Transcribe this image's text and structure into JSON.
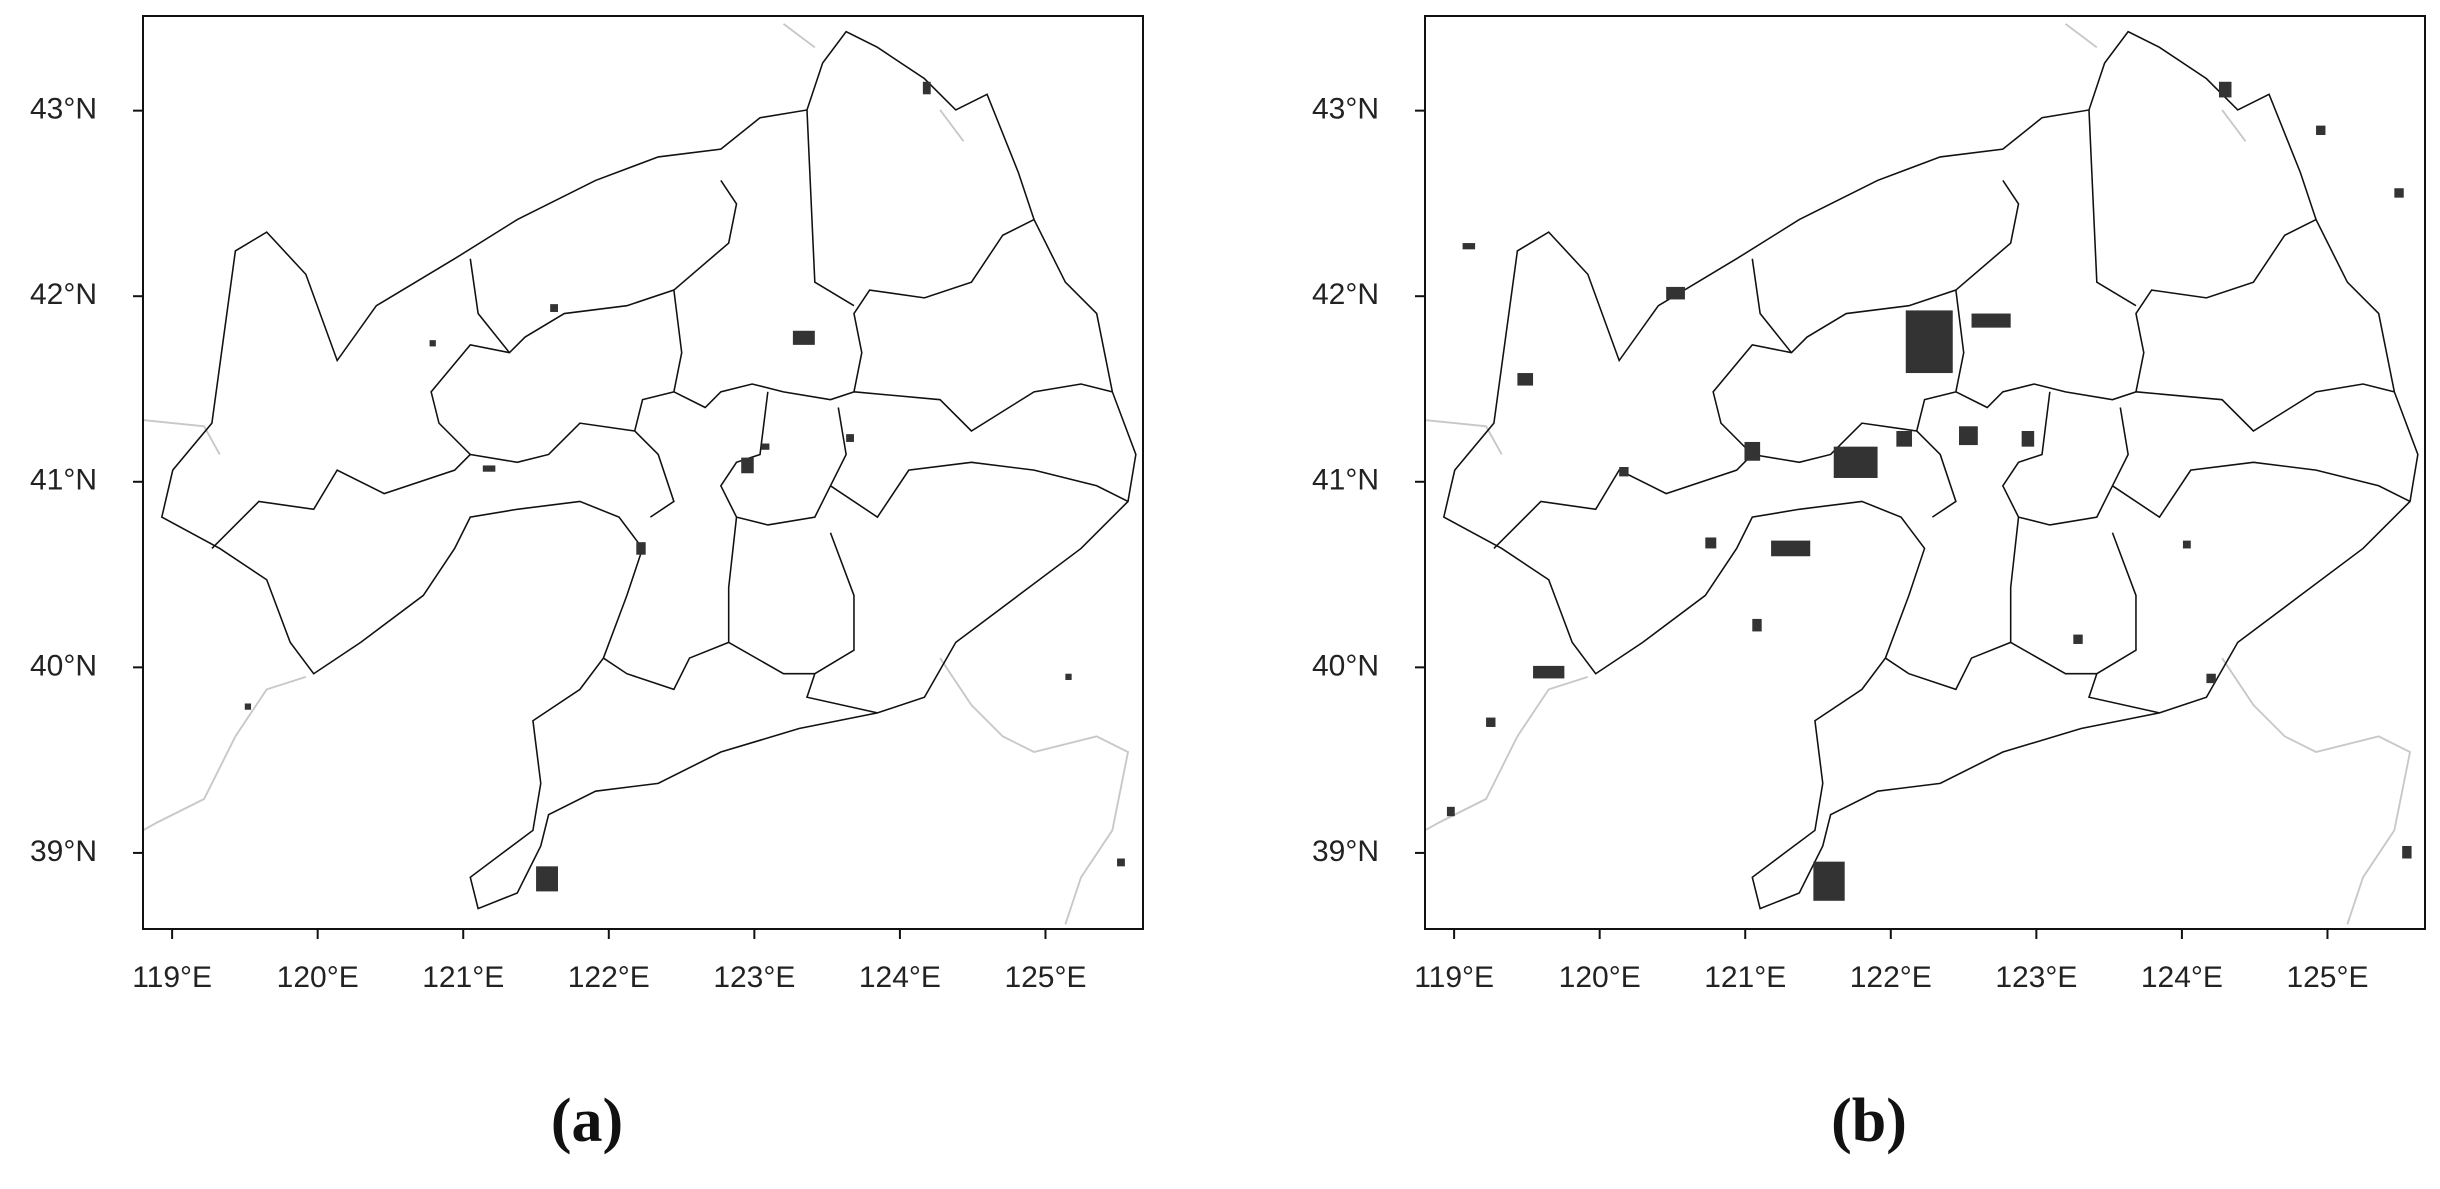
{
  "panels": [
    {
      "label": "(a)",
      "xlim": [
        118.8,
        125.67
      ],
      "ylim": [
        38.59,
        43.51
      ],
      "xticks": [
        {
          "value": 119,
          "label": "119°E"
        },
        {
          "value": 120,
          "label": "120°E"
        },
        {
          "value": 121,
          "label": "121°E"
        },
        {
          "value": 122,
          "label": "122°E"
        },
        {
          "value": 123,
          "label": "123°E"
        },
        {
          "value": 124,
          "label": "124°E"
        },
        {
          "value": 125,
          "label": "125°E"
        }
      ],
      "yticks": [
        {
          "value": 39,
          "label": "39°N"
        },
        {
          "value": 40,
          "label": "40°N"
        },
        {
          "value": 41,
          "label": "41°N"
        },
        {
          "value": 42,
          "label": "42°N"
        },
        {
          "value": 43,
          "label": "43°N"
        }
      ]
    },
    {
      "label": "(b)",
      "xlim": [
        118.8,
        125.67
      ],
      "ylim": [
        38.59,
        43.51
      ],
      "xticks": [
        {
          "value": 119,
          "label": "119°E"
        },
        {
          "value": 120,
          "label": "120°E"
        },
        {
          "value": 121,
          "label": "121°E"
        },
        {
          "value": 122,
          "label": "122°E"
        },
        {
          "value": 123,
          "label": "123°E"
        },
        {
          "value": 124,
          "label": "124°E"
        },
        {
          "value": 125,
          "label": "125°E"
        }
      ],
      "yticks": [
        {
          "value": 39,
          "label": "39°N"
        },
        {
          "value": 40,
          "label": "40°N"
        },
        {
          "value": 41,
          "label": "41°N"
        },
        {
          "value": 42,
          "label": "42°N"
        },
        {
          "value": 43,
          "label": "43°N"
        }
      ]
    }
  ]
}
